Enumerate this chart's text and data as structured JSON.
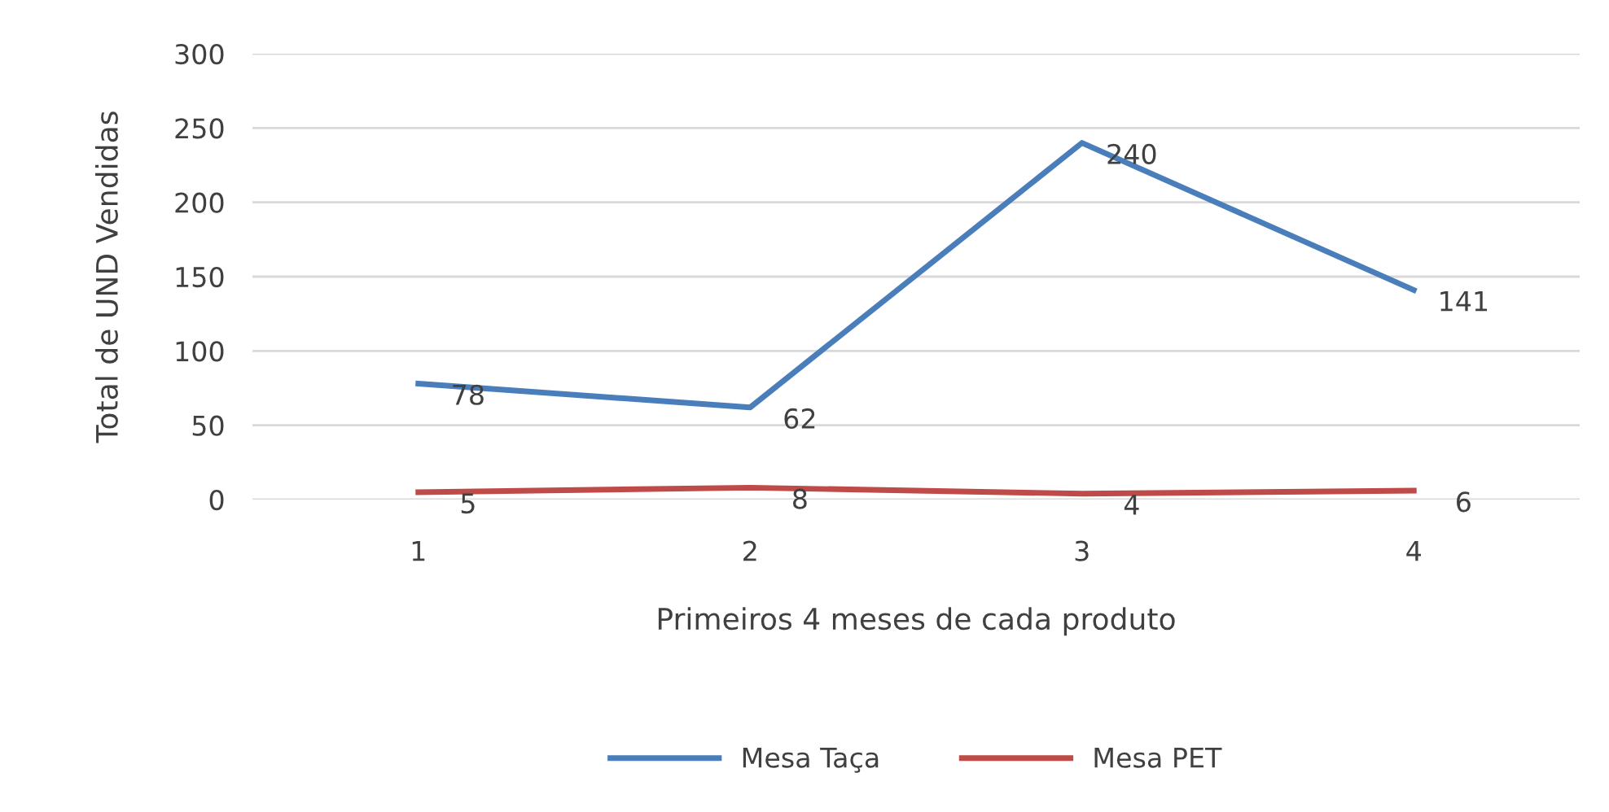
{
  "chart_data": {
    "type": "line",
    "xlabel": "Primeiros 4 meses de cada produto",
    "ylabel": "Total de UND Vendidas",
    "categories": [
      "1",
      "2",
      "3",
      "4"
    ],
    "series": [
      {
        "name": "Mesa Taça",
        "color": "#4a7ebb",
        "values": [
          78,
          62,
          240,
          141
        ]
      },
      {
        "name": "Mesa PET",
        "color": "#be4b48",
        "values": [
          5,
          8,
          4,
          6
        ]
      }
    ],
    "ylim": [
      0,
      300
    ],
    "yticks": [
      0,
      50,
      100,
      150,
      200,
      250,
      300
    ],
    "grid": "y",
    "legend": "bottom",
    "data_labels": true,
    "marker": "none",
    "line_style": "solid"
  }
}
